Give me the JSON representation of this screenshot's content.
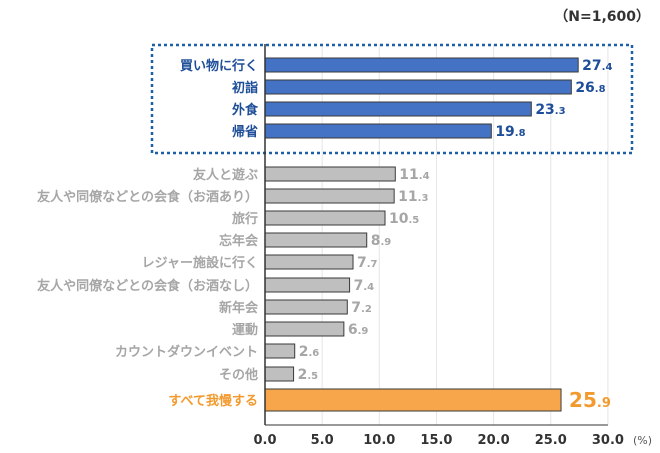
{
  "sample_note": "（N=1,600）",
  "unit_label": "(%)",
  "colors": {
    "highlight_bar": "#4472C4",
    "highlight_text": "#1F4E99",
    "normal_bar": "#BFBFBF",
    "normal_text": "#A6A6A6",
    "accent_bar": "#F8A64B",
    "accent_text": "#F39A2E",
    "box_border": "#1F5FA8"
  },
  "chart_data": {
    "type": "bar",
    "orientation": "horizontal",
    "xlim": [
      0,
      30
    ],
    "xticks": [
      "0.0",
      "5.0",
      "10.0",
      "15.0",
      "20.0",
      "25.0",
      "30.0"
    ],
    "grid": true,
    "categories": [
      "買い物に行く",
      "初詣",
      "外食",
      "帰省",
      "友人と遊ぶ",
      "友人や同僚などとの会食（お酒あり）",
      "旅行",
      "忘年会",
      "レジャー施設に行く",
      "友人や同僚などとの会食（お酒なし）",
      "新年会",
      "運動",
      "カウントダウンイベント",
      "その他",
      "すべて我慢する"
    ],
    "values": [
      27.4,
      26.8,
      23.3,
      19.8,
      11.4,
      11.3,
      10.5,
      8.9,
      7.7,
      7.4,
      7.2,
      6.9,
      2.6,
      2.5,
      25.9
    ],
    "groups": [
      "highlight",
      "highlight",
      "highlight",
      "highlight",
      "normal",
      "normal",
      "normal",
      "normal",
      "normal",
      "normal",
      "normal",
      "normal",
      "normal",
      "normal",
      "accent"
    ]
  }
}
